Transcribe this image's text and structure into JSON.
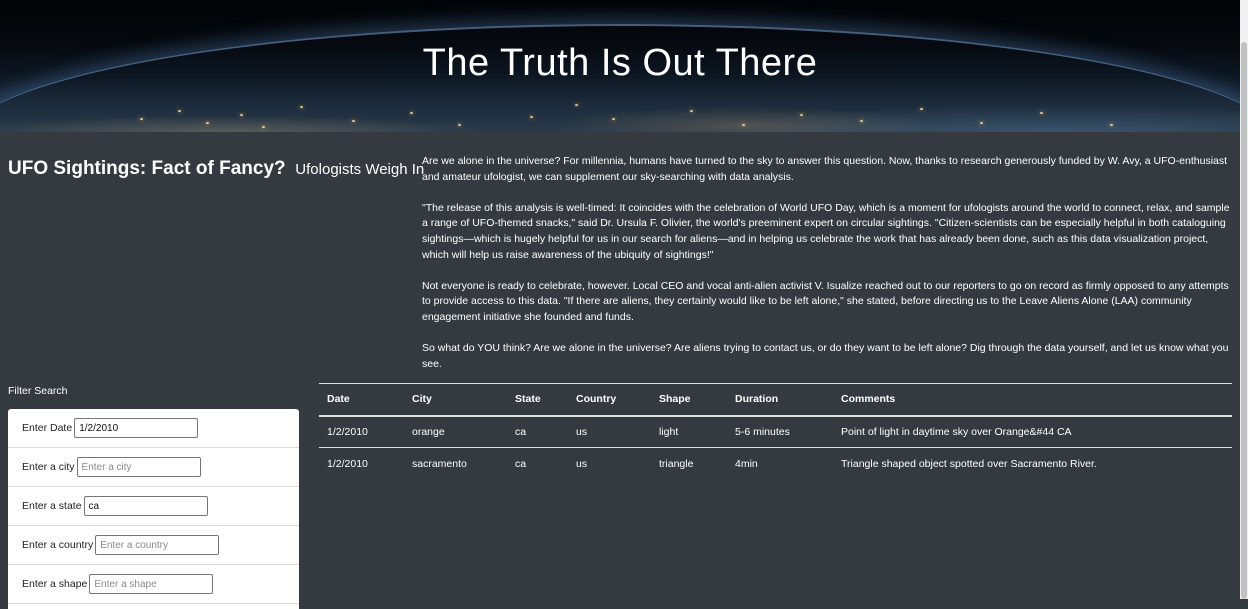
{
  "hero": {
    "title": "The Truth Is Out There"
  },
  "headline": {
    "main": "UFO Sightings: Fact of Fancy?",
    "sub": "Ufologists Weigh In"
  },
  "article": {
    "paragraphs": [
      "Are we alone in the universe? For millennia, humans have turned to the sky to answer this question. Now, thanks to research generously funded by W. Avy, a UFO-enthusiast and amateur ufologist, we can supplement our sky-searching with data analysis.",
      "\"The release of this analysis is well-timed: It coincides with the celebration of World UFO Day, which is a moment for ufologists around the world to connect, relax, and sample a range of UFO-themed snacks,\" said Dr. Ursula F. Olivier, the world's preeminent expert on circular sightings. \"Citizen-scientists can be especially helpful in both cataloguing sightings—which is hugely helpful for us in our search for aliens—and in helping us celebrate the work that has already been done, such as this data visualization project, which will help us raise awareness of the ubiquity of sightings!\"",
      "Not everyone is ready to celebrate, however. Local CEO and vocal anti-alien activist V. Isualize reached out to our reporters to go on record as firmly opposed to any attempts to provide access to this data. \"If there are aliens, they certainly would like to be left alone,\" she stated, before directing us to the Leave Aliens Alone (LAA) community engagement initiative she founded and funds.",
      "So what do YOU think? Are we alone in the universe? Are aliens trying to contact us, or do they want to be left alone? Dig through the data yourself, and let us know what you see."
    ]
  },
  "filters": {
    "title": "Filter Search",
    "fields": [
      {
        "label": "Enter Date",
        "value": "1/2/2010",
        "placeholder": ""
      },
      {
        "label": "Enter a city",
        "value": "",
        "placeholder": "Enter a city"
      },
      {
        "label": "Enter a state",
        "value": "ca",
        "placeholder": ""
      },
      {
        "label": "Enter a country",
        "value": "",
        "placeholder": "Enter a country"
      },
      {
        "label": "Enter a shape",
        "value": "",
        "placeholder": "Enter a shape"
      }
    ]
  },
  "table": {
    "columns": [
      "Date",
      "City",
      "State",
      "Country",
      "Shape",
      "Duration",
      "Comments"
    ],
    "rows": [
      [
        "1/2/2010",
        "orange",
        "ca",
        "us",
        "light",
        "5-6 minutes",
        "Point of light in daytime sky over Orange&#44 CA"
      ],
      [
        "1/2/2010",
        "sacramento",
        "ca",
        "us",
        "triangle",
        "4min",
        "Triangle shaped object spotted over Sacramento River."
      ]
    ]
  }
}
